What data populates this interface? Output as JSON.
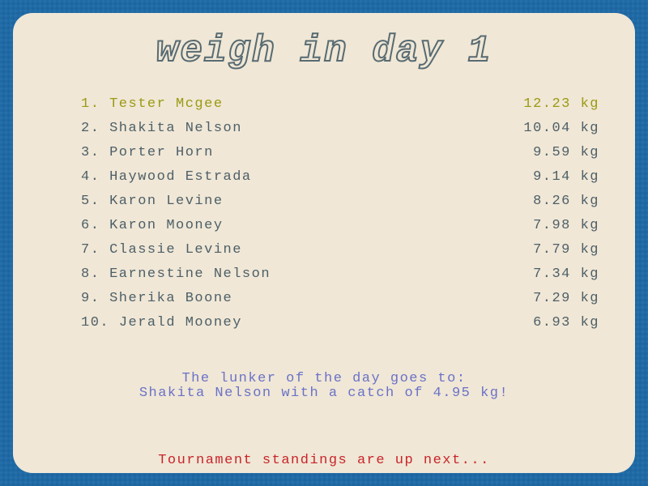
{
  "screen": {
    "title": "weigh in day 1",
    "colors": {
      "background": "#1f6aa6",
      "panel": "#f0e7d6",
      "text": "#4d5f68",
      "leader": "#9a9a12",
      "lunker": "#6a72c8",
      "next": "#c8242a"
    }
  },
  "standings": [
    {
      "rank": "1.",
      "name": "Tester Mcgee",
      "weight": "12.23 kg"
    },
    {
      "rank": "2.",
      "name": "Shakita Nelson",
      "weight": "10.04 kg"
    },
    {
      "rank": "3.",
      "name": "Porter Horn",
      "weight": "9.59 kg"
    },
    {
      "rank": "4.",
      "name": "Haywood Estrada",
      "weight": "9.14 kg"
    },
    {
      "rank": "5.",
      "name": "Karon Levine",
      "weight": "8.26 kg"
    },
    {
      "rank": "6.",
      "name": "Karon Mooney",
      "weight": "7.98 kg"
    },
    {
      "rank": "7.",
      "name": "Classie Levine",
      "weight": "7.79 kg"
    },
    {
      "rank": "8.",
      "name": "Earnestine Nelson",
      "weight": "7.34 kg"
    },
    {
      "rank": "9.",
      "name": "Sherika Boone",
      "weight": "7.29 kg"
    },
    {
      "rank": "10.",
      "name": "Jerald Mooney",
      "weight": "6.93 kg"
    }
  ],
  "lunker": {
    "line1": "The lunker of the day goes to:",
    "line2": "Shakita Nelson with a catch of 4.95 kg!"
  },
  "footer": {
    "next_text": "Tournament standings are up next..."
  }
}
